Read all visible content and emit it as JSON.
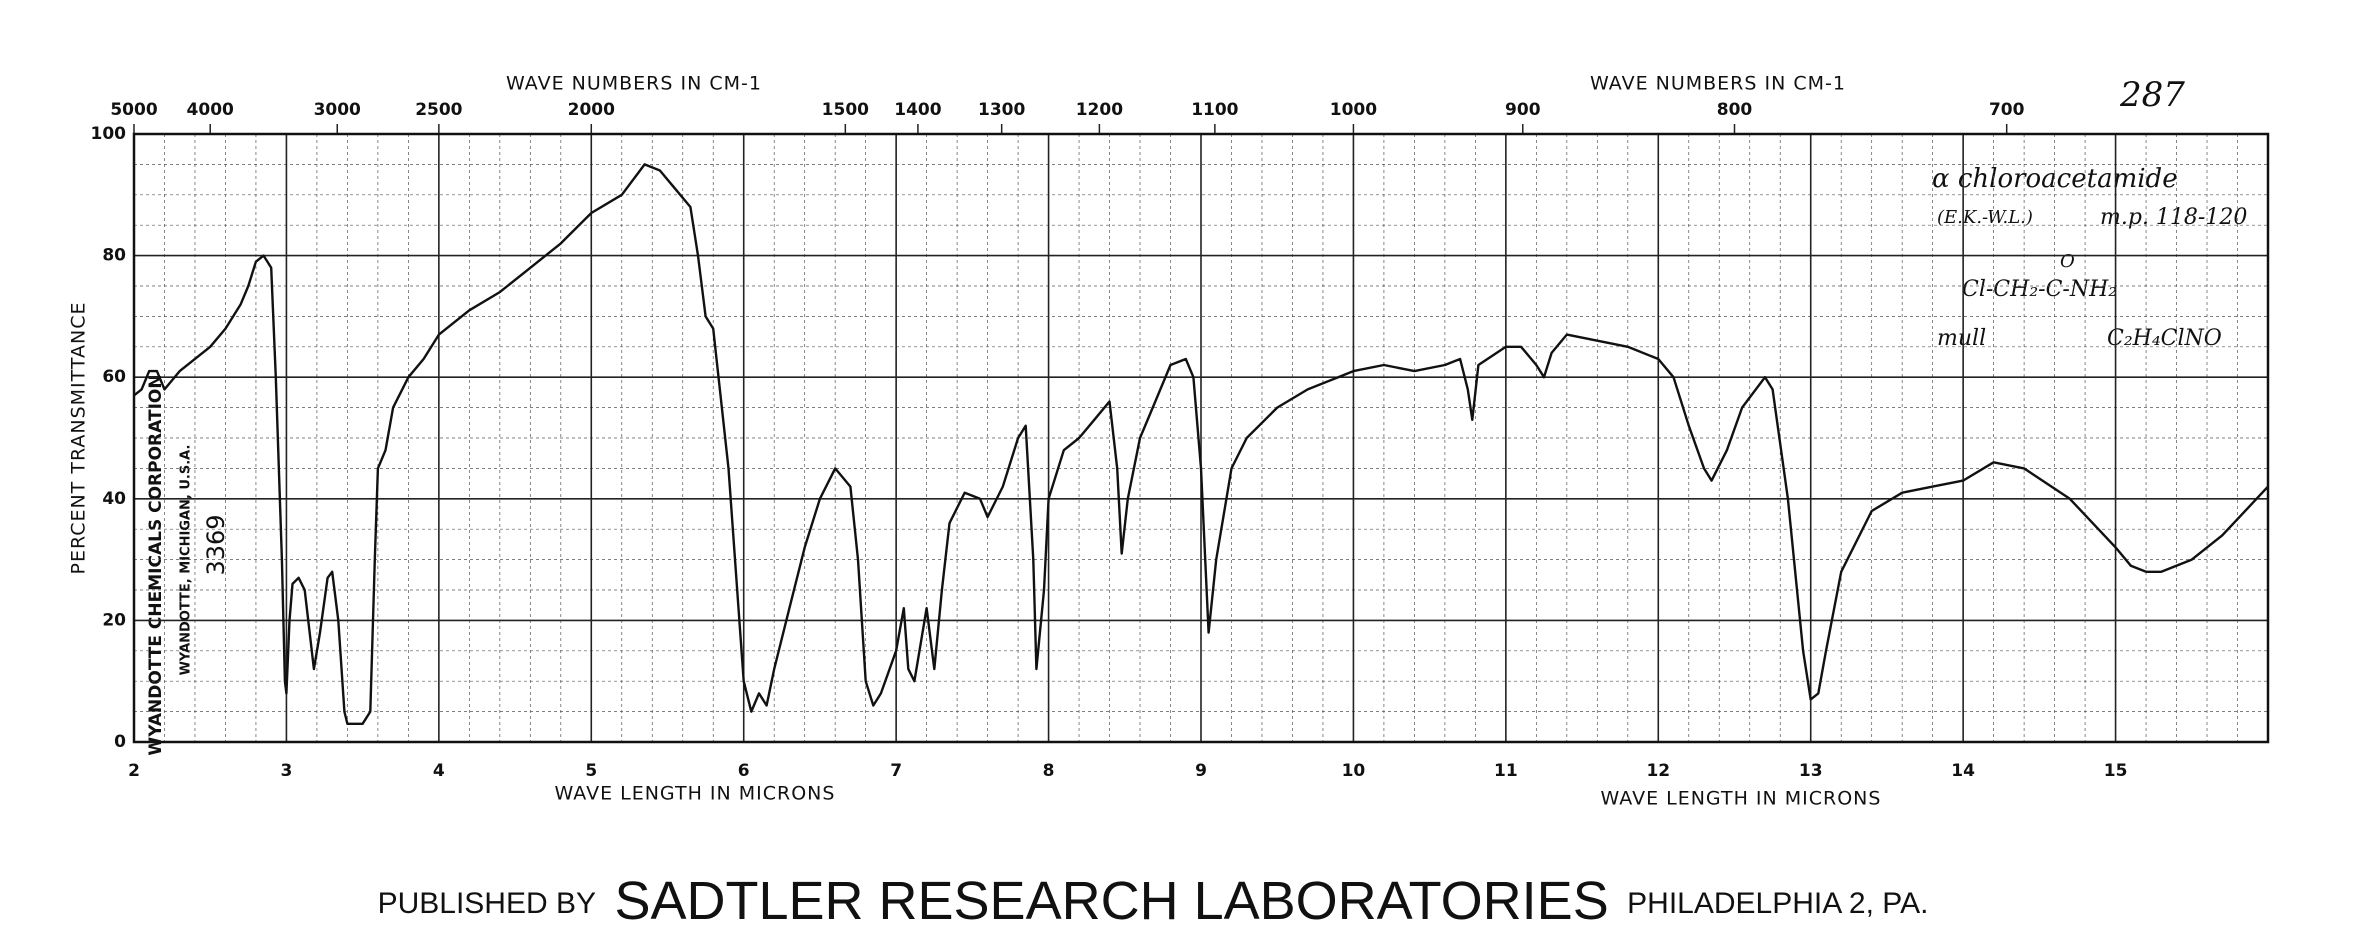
{
  "chart_data": {
    "type": "line",
    "catalog_number": "287",
    "x_label_top": "WAVE NUMBERS IN CM-1",
    "x_label_bottom": "WAVE LENGTH IN MICRONS",
    "y_label": "PERCENT TRANSMITTANCE",
    "annotations": [
      "α chloroacetamide",
      "(E.K.-W.L.)",
      "m.p. 118-120",
      "O",
      "Cl-CH₂-C-NH₂",
      "mull",
      "C₂H₄ClNO"
    ],
    "stamp": [
      "WYANDOTTE CHEMICALS CORPORATION",
      "WYANDOTTE, MICHIGAN, U.S.A.",
      "3369"
    ],
    "footer": [
      "PUBLISHED BY",
      "SADTLER RESEARCH LABORATORIES",
      "PHILADELPHIA 2, PA."
    ],
    "color": "#111111",
    "grid": true,
    "minor_grid": true,
    "xlim": [
      2,
      16
    ],
    "xticks": [
      2,
      3,
      4,
      5,
      6,
      7,
      8,
      9,
      10,
      11,
      12,
      13,
      14,
      15
    ],
    "x2ticks": [
      5000,
      4000,
      3000,
      2500,
      2000,
      1500,
      1400,
      1300,
      1200,
      1100,
      1000,
      900,
      800,
      700
    ],
    "ylim": [
      0,
      100
    ],
    "yticks": [
      0,
      20,
      40,
      60,
      80,
      100
    ],
    "x": [
      2.0,
      2.05,
      2.1,
      2.15,
      2.2,
      2.3,
      2.5,
      2.6,
      2.7,
      2.75,
      2.8,
      2.85,
      2.9,
      2.93,
      2.97,
      2.99,
      3.0,
      3.02,
      3.04,
      3.08,
      3.12,
      3.18,
      3.22,
      3.27,
      3.3,
      3.34,
      3.38,
      3.4,
      3.5,
      3.55,
      3.58,
      3.6,
      3.65,
      3.7,
      3.8,
      3.9,
      4.0,
      4.2,
      4.4,
      4.6,
      4.8,
      5.0,
      5.2,
      5.35,
      5.45,
      5.55,
      5.65,
      5.7,
      5.75,
      5.8,
      5.9,
      6.0,
      6.05,
      6.1,
      6.15,
      6.2,
      6.3,
      6.4,
      6.5,
      6.6,
      6.7,
      6.75,
      6.8,
      6.85,
      6.9,
      7.0,
      7.05,
      7.08,
      7.12,
      7.2,
      7.25,
      7.3,
      7.35,
      7.45,
      7.55,
      7.6,
      7.7,
      7.8,
      7.85,
      7.9,
      7.92,
      7.97,
      8.0,
      8.1,
      8.2,
      8.3,
      8.4,
      8.45,
      8.48,
      8.52,
      8.6,
      8.7,
      8.8,
      8.9,
      8.95,
      9.0,
      9.05,
      9.1,
      9.2,
      9.3,
      9.5,
      9.7,
      9.9,
      10.0,
      10.2,
      10.4,
      10.6,
      10.7,
      10.75,
      10.78,
      10.82,
      11.0,
      11.1,
      11.2,
      11.25,
      11.3,
      11.4,
      11.6,
      11.8,
      12.0,
      12.1,
      12.2,
      12.3,
      12.35,
      12.45,
      12.55,
      12.7,
      12.75,
      12.85,
      12.95,
      13.0,
      13.05,
      13.1,
      13.2,
      13.4,
      13.6,
      13.8,
      14.0,
      14.2,
      14.4,
      14.7,
      15.0,
      15.1,
      15.2,
      15.3,
      15.5,
      15.7,
      16.0
    ],
    "values": [
      57,
      58,
      61,
      61,
      58,
      61,
      65,
      68,
      72,
      75,
      79,
      80,
      78,
      60,
      30,
      10,
      8,
      20,
      26,
      27,
      25,
      12,
      18,
      27,
      28,
      20,
      5,
      3,
      3,
      5,
      30,
      45,
      48,
      55,
      60,
      63,
      67,
      71,
      74,
      78,
      82,
      87,
      90,
      95,
      94,
      91,
      88,
      80,
      70,
      68,
      45,
      10,
      5,
      8,
      6,
      12,
      22,
      32,
      40,
      45,
      42,
      30,
      10,
      6,
      8,
      15,
      22,
      12,
      10,
      22,
      12,
      25,
      36,
      41,
      40,
      37,
      42,
      50,
      52,
      30,
      12,
      25,
      40,
      48,
      50,
      53,
      56,
      45,
      31,
      40,
      50,
      56,
      62,
      63,
      60,
      45,
      18,
      30,
      45,
      50,
      55,
      58,
      60,
      61,
      62,
      61,
      62,
      63,
      58,
      53,
      62,
      65,
      65,
      62,
      60,
      64,
      67,
      66,
      65,
      63,
      60,
      52,
      45,
      43,
      48,
      55,
      60,
      58,
      40,
      15,
      7,
      8,
      15,
      28,
      38,
      41,
      42,
      43,
      46,
      45,
      40,
      32,
      29,
      28,
      28,
      30,
      34,
      42
    ]
  }
}
